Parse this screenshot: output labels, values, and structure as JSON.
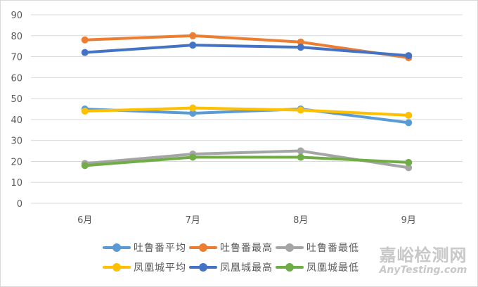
{
  "chart_data": {
    "type": "line",
    "title": "",
    "xlabel": "",
    "ylabel": "",
    "categories": [
      "6月",
      "7月",
      "8月",
      "9月"
    ],
    "ylim": [
      0,
      90
    ],
    "yticks": [
      0,
      10,
      20,
      30,
      40,
      50,
      60,
      70,
      80,
      90
    ],
    "grid": true,
    "legend_position": "bottom",
    "series": [
      {
        "name": "吐鲁番平均",
        "color": "#5b9bd5",
        "values": [
          45,
          43,
          45,
          38.5
        ]
      },
      {
        "name": "吐鲁番最高",
        "color": "#ed7d31",
        "values": [
          78,
          80,
          77,
          69.5
        ]
      },
      {
        "name": "吐鲁番最低",
        "color": "#a5a5a5",
        "values": [
          19,
          23.5,
          25,
          17
        ]
      },
      {
        "name": "凤凰城平均",
        "color": "#ffc000",
        "values": [
          44,
          45.5,
          44.5,
          42
        ]
      },
      {
        "name": "凤凰城最高",
        "color": "#4472c4",
        "values": [
          72,
          75.5,
          74.5,
          70.5
        ]
      },
      {
        "name": "凤凰城最低",
        "color": "#70ad47",
        "values": [
          18,
          22,
          22,
          19.5
        ]
      }
    ]
  },
  "legend": {
    "row1": [
      "吐鲁番平均",
      "吐鲁番最高",
      "吐鲁番最低"
    ],
    "row2": [
      "凤凰城平均",
      "凤凰城最高",
      "凤凰城最低"
    ]
  },
  "watermark": {
    "cn": "嘉峪检测网",
    "en": "AnyTesting.com"
  }
}
